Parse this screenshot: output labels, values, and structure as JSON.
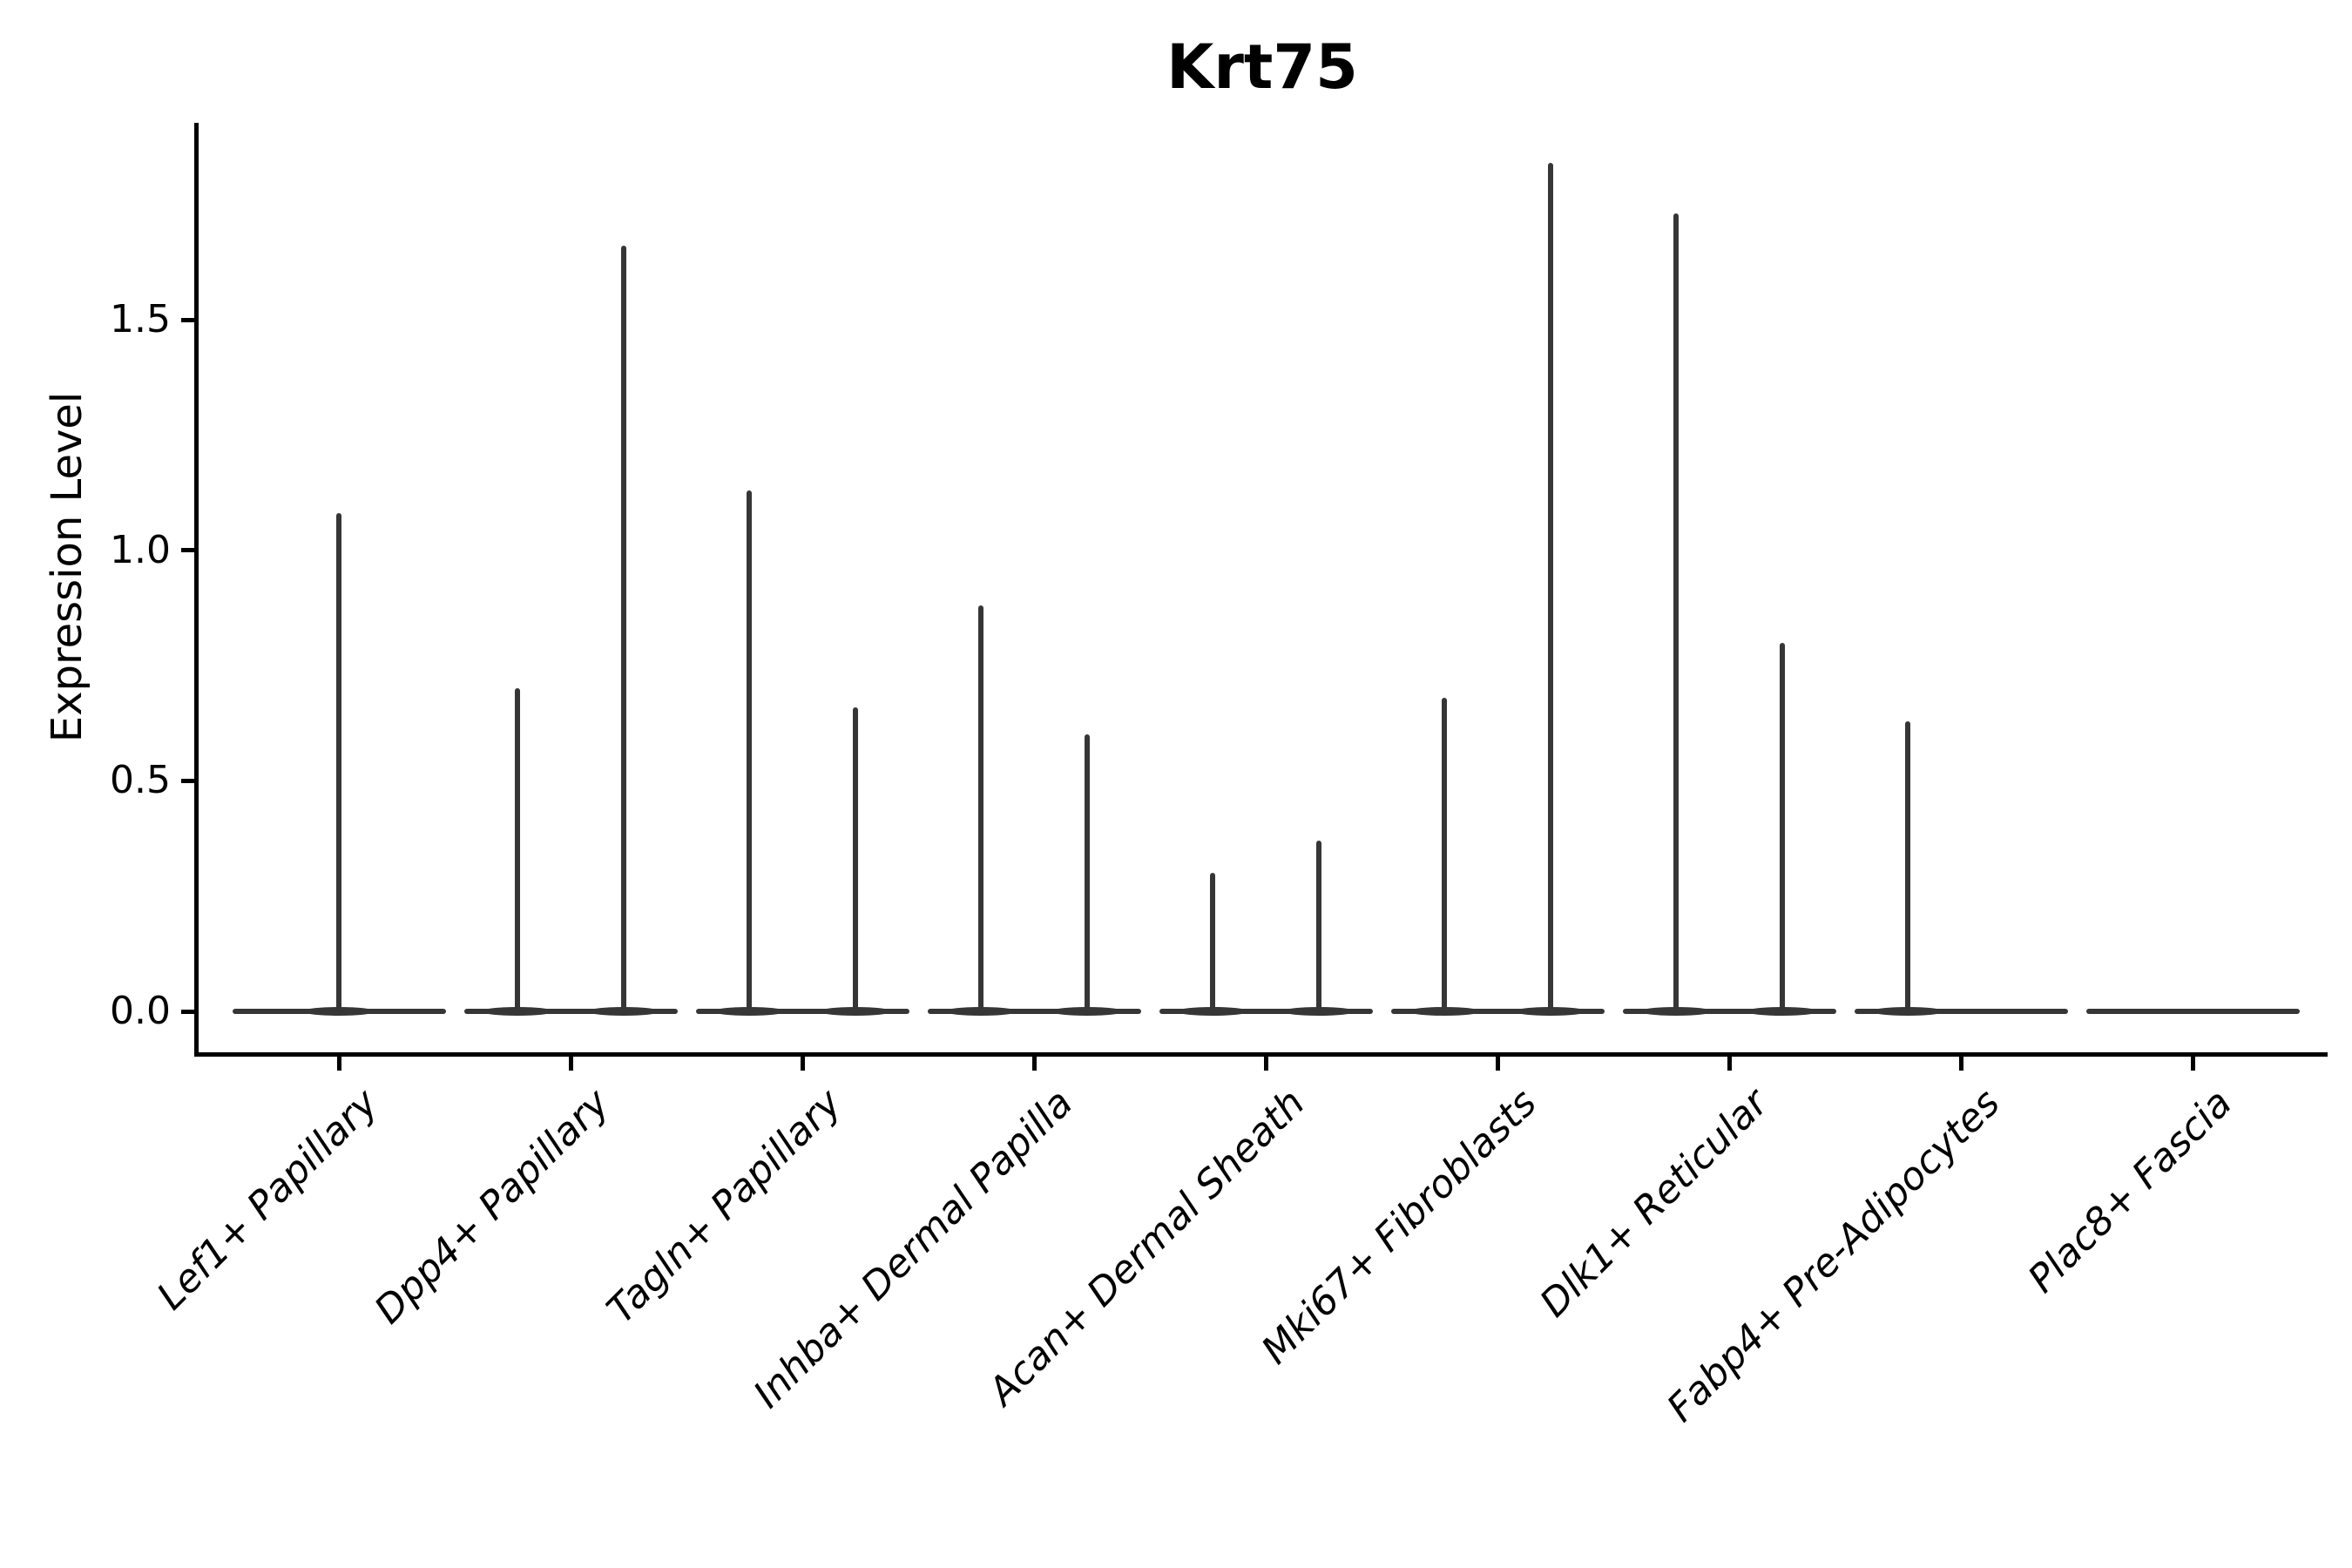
{
  "title": "Krt75",
  "chart_data": {
    "type": "violin",
    "title": "Krt75",
    "xlabel": "",
    "ylabel": "Expression Level",
    "ylim": [
      -0.09,
      1.93
    ],
    "ytick_labels": [
      "0.0",
      "0.5",
      "1.0",
      "1.5"
    ],
    "ytick_values": [
      0,
      0.5,
      1.0,
      1.5
    ],
    "grid": false,
    "legend_position": "none",
    "x_tick_label_rotation_deg": 45,
    "x_tick_label_style": "italic",
    "categories": [
      "Lef1+ Papillary",
      "Dpp4+ Papillary",
      "Tagln+ Papillary",
      "Inhba+ Dermal Papilla",
      "Acan+ Dermal Sheath",
      "Mki67+ Fibroblasts",
      "Dlk1+ Reticular",
      "Fabp4+ Pre-Adipocytes",
      "Plac8+ Fascia"
    ],
    "groups": [
      {
        "category": "Lef1+ Papillary",
        "violins": [
          {
            "position": "center",
            "max": 1.08
          }
        ]
      },
      {
        "category": "Dpp4+ Papillary",
        "violins": [
          {
            "position": "left",
            "max": 0.7
          },
          {
            "position": "right",
            "max": 1.66
          }
        ]
      },
      {
        "category": "Tagln+ Papillary",
        "violins": [
          {
            "position": "left",
            "max": 1.13
          },
          {
            "position": "right",
            "max": 0.66
          }
        ]
      },
      {
        "category": "Inhba+ Dermal Papilla",
        "violins": [
          {
            "position": "left",
            "max": 0.88
          },
          {
            "position": "right",
            "max": 0.6
          }
        ]
      },
      {
        "category": "Acan+ Dermal Sheath",
        "violins": [
          {
            "position": "left",
            "max": 0.3
          },
          {
            "position": "right",
            "max": 0.37
          }
        ]
      },
      {
        "category": "Mki67+ Fibroblasts",
        "violins": [
          {
            "position": "left",
            "max": 0.68
          },
          {
            "position": "right",
            "max": 1.84
          }
        ]
      },
      {
        "category": "Dlk1+ Reticular",
        "violins": [
          {
            "position": "left",
            "max": 1.73
          },
          {
            "position": "right",
            "max": 0.8
          }
        ]
      },
      {
        "category": "Fabp4+ Pre-Adipocytes",
        "violins": [
          {
            "position": "left",
            "max": 0.63
          },
          {
            "position": "right",
            "max": 0
          }
        ]
      },
      {
        "category": "Plac8+ Fascia",
        "violins": [
          {
            "position": "center",
            "max": 0
          }
        ]
      }
    ],
    "colors": {
      "violin_line": "#363636",
      "axis": "#000000",
      "text": "#000000",
      "background": "#ffffff"
    }
  }
}
